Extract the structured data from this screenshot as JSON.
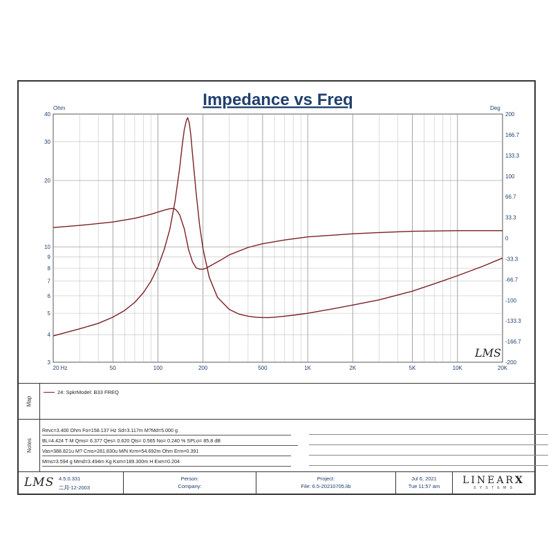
{
  "chart_data": {
    "type": "line",
    "title": "Impedance vs Freq",
    "y_left_unit": "Ohm",
    "y_right_unit": "Deg",
    "x_scale": "log",
    "x_range": [
      20,
      20000
    ],
    "y_left_scale": "log",
    "y_left_range": [
      3,
      40
    ],
    "y_right_range": [
      -200,
      200
    ],
    "x_tick_labels": [
      "20 Hz",
      "50",
      "100",
      "200",
      "500",
      "1K",
      "2K",
      "5K",
      "10K",
      "20K"
    ],
    "x_tick_values": [
      20,
      50,
      100,
      200,
      500,
      1000,
      2000,
      5000,
      10000,
      20000
    ],
    "y_left_tick_labels": [
      "40",
      "30",
      "20",
      "10",
      "9",
      "8",
      "7",
      "6",
      "5",
      "4",
      "3"
    ],
    "y_left_tick_values": [
      40,
      30,
      20,
      10,
      9,
      8,
      7,
      6,
      5,
      4,
      3
    ],
    "y_right_tick_labels": [
      "200",
      "166.7",
      "133.3",
      "100",
      "66.7",
      "33.3",
      "0",
      "-33.3",
      "-66.7",
      "-100",
      "-133.3",
      "-166.7",
      "-200"
    ],
    "y_right_tick_values": [
      200,
      166.7,
      133.3,
      100,
      66.7,
      33.3,
      0,
      -33.3,
      -66.7,
      -100,
      -133.3,
      -166.7,
      -200
    ],
    "grid": true,
    "watermark": "LMS",
    "series": [
      {
        "axis": "left",
        "x": [
          20,
          30,
          40,
          50,
          60,
          70,
          80,
          90,
          100,
          110,
          120,
          130,
          140,
          145,
          150,
          155,
          158,
          162,
          166,
          170,
          180,
          190,
          200,
          220,
          250,
          300,
          350,
          400,
          450,
          500,
          550,
          600,
          700,
          800,
          1000,
          1500,
          2000,
          3000,
          5000,
          7000,
          10000,
          15000,
          20000
        ],
        "values": [
          3.95,
          4.25,
          4.5,
          4.8,
          5.15,
          5.6,
          6.2,
          7.0,
          8.1,
          9.7,
          12.0,
          16.0,
          23.0,
          28.5,
          34.0,
          37.5,
          38.5,
          36.5,
          32.0,
          26.5,
          17.5,
          12.5,
          9.8,
          7.3,
          5.9,
          5.2,
          4.95,
          4.85,
          4.8,
          4.78,
          4.78,
          4.8,
          4.85,
          4.9,
          5.0,
          5.25,
          5.45,
          5.75,
          6.3,
          6.8,
          7.4,
          8.2,
          8.9
        ],
        "color": "#7a1e22"
      },
      {
        "axis": "right",
        "x": [
          20,
          30,
          50,
          70,
          90,
          100,
          110,
          120,
          125,
          130,
          135,
          140,
          150,
          160,
          170,
          180,
          190,
          200,
          210,
          230,
          260,
          300,
          400,
          500,
          700,
          1000,
          2000,
          3000,
          5000,
          10000,
          20000
        ],
        "values": [
          17,
          20.5,
          26,
          32,
          38.5,
          42,
          45,
          47.5,
          48,
          47,
          43,
          37,
          15,
          -18,
          -38,
          -48,
          -50,
          -50,
          -48.5,
          -43,
          -36,
          -27,
          -15,
          -9,
          -3,
          2,
          7,
          9,
          11,
          12,
          12
        ],
        "color": "#7a1e22"
      }
    ]
  },
  "legend": {
    "tab_label": "Map",
    "entry": "24: SpkrModel: B33 FREQ",
    "color": "#7a1e22"
  },
  "notes": {
    "tab_label": "Notes",
    "lines": [
      "Revc=3.400 Ohm  Fo=158.137 Hz  Sd=3.117m M?Md=5.000 g",
      "BL=4.424 T·M  Qms= 6.377  Qes= 0.620  Qts= 0.565  No= 0.240 %  SPLo= 85.8 dB",
      "Vas=388.821u M? Cms=281.830u M/N  Krm=54.692m Ohm  Erm=0.391",
      "Mms=3.594 g  Mmd=3.494m Kg  Kxm=189.300m H  Exm=0.204"
    ]
  },
  "footer": {
    "logo": "LMS",
    "version": "4.5.0.331",
    "version_date": "二月-12-2003",
    "person_label": "Person:",
    "company_label": "Company:",
    "project_label": "Project:",
    "file_label": "File: 6.5-20210705.lib",
    "date": "Jul 6, 2021",
    "time": "Tue 11:57 am",
    "brand": "LINEAR",
    "brand_x": "X",
    "brand_sub": "S Y S T E M S"
  }
}
